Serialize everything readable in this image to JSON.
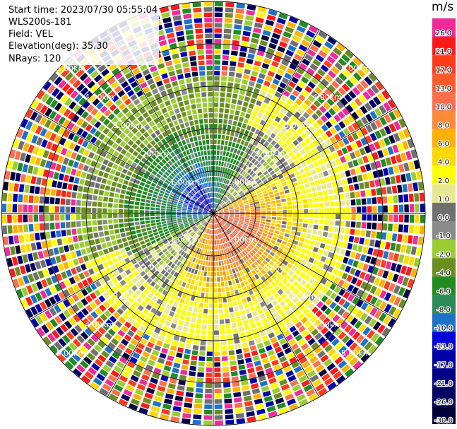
{
  "info": {
    "start_time": "Start time: 2023/07/30 05:55:04",
    "instrument": "WLS200s-181",
    "field": "Field: VEL",
    "elevation": "Elevation(deg): 35.30",
    "nrays": "NRays: 120"
  },
  "colorbar": {
    "units": "m/s",
    "levels": [
      {
        "label": "26.0",
        "color": "#f02a9a"
      },
      {
        "label": "21.0",
        "color": "#ff1a1a"
      },
      {
        "label": "17.0",
        "color": "#ff3b1c"
      },
      {
        "label": "13.0",
        "color": "#ff5a2a"
      },
      {
        "label": "10.0",
        "color": "#ff6f4a"
      },
      {
        "label": "8.0",
        "color": "#ff8a3a"
      },
      {
        "label": "6.0",
        "color": "#ffb000"
      },
      {
        "label": "4.0",
        "color": "#ffd800"
      },
      {
        "label": "2.0",
        "color": "#ffff00"
      },
      {
        "label": "1.0",
        "color": "#e8e890"
      },
      {
        "label": "0.0",
        "color": "#707070"
      },
      {
        "label": "-1.0",
        "color": "#8a8a8a"
      },
      {
        "label": "-2.0",
        "color": "#9acd32"
      },
      {
        "label": "-4.0",
        "color": "#6b8e23"
      },
      {
        "label": "-6.0",
        "color": "#228b22"
      },
      {
        "label": "-8.0",
        "color": "#2e8b57"
      },
      {
        "label": "-10.0",
        "color": "#1e73c8"
      },
      {
        "label": "-13.0",
        "color": "#0000dd"
      },
      {
        "label": "-17.0",
        "color": "#0000aa"
      },
      {
        "label": "-21.0",
        "color": "#000088"
      },
      {
        "label": "-26.0",
        "color": "#000060"
      },
      {
        "label": "-30.0",
        "color": "#00003a"
      }
    ]
  },
  "chart_data": {
    "type": "heatmap",
    "subtype": "ppi-polar",
    "field": "VEL",
    "units": "m/s",
    "nrays": 120,
    "range_rings_km": [
      1,
      2,
      3,
      4,
      5
    ],
    "ring_labels": [
      "1.00km",
      "2.00km",
      "3.00km",
      "4.00km",
      "5.00km"
    ],
    "valid_range_km": 3.2,
    "features": {
      "inner_negative_lobe_azimuth_deg": 315,
      "inner_positive_lobe_azimuth_deg": 135,
      "peak_positive_ms": 17,
      "peak_negative_ms": -13
    },
    "colormap_range_ms": [
      -30,
      26
    ]
  }
}
